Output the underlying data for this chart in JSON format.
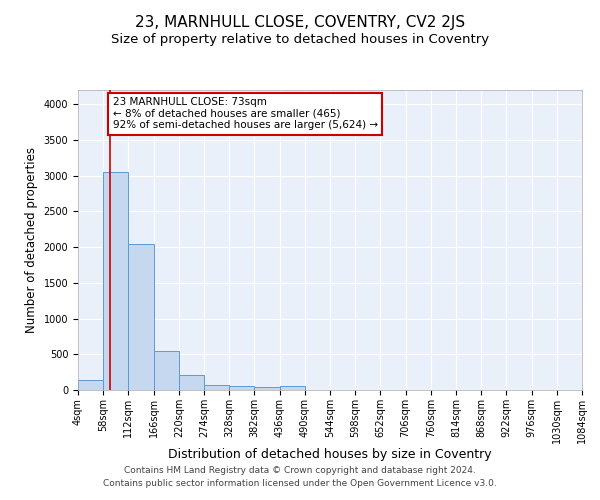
{
  "title1": "23, MARNHULL CLOSE, COVENTRY, CV2 2JS",
  "title2": "Size of property relative to detached houses in Coventry",
  "xlabel": "Distribution of detached houses by size in Coventry",
  "ylabel": "Number of detached properties",
  "bin_edges": [
    4,
    58,
    112,
    166,
    220,
    274,
    328,
    382,
    436,
    490,
    544,
    598,
    652,
    706,
    760,
    814,
    868,
    922,
    976,
    1030,
    1084
  ],
  "bar_heights": [
    140,
    3050,
    2050,
    540,
    215,
    70,
    50,
    45,
    50,
    0,
    0,
    0,
    0,
    0,
    0,
    0,
    0,
    0,
    0,
    0
  ],
  "bar_color": "#c5d8f0",
  "bar_edge_color": "#5b9bd5",
  "bg_color": "#eaf0fa",
  "grid_color": "#ffffff",
  "property_size": 73,
  "vline_color": "#cc0000",
  "annotation_text": "23 MARNHULL CLOSE: 73sqm\n← 8% of detached houses are smaller (465)\n92% of semi-detached houses are larger (5,624) →",
  "annotation_box_color": "#ffffff",
  "annotation_box_edge": "#cc0000",
  "ylim": [
    0,
    4200
  ],
  "yticks": [
    0,
    500,
    1000,
    1500,
    2000,
    2500,
    3000,
    3500,
    4000
  ],
  "footer_line1": "Contains HM Land Registry data © Crown copyright and database right 2024.",
  "footer_line2": "Contains public sector information licensed under the Open Government Licence v3.0.",
  "title1_fontsize": 11,
  "title2_fontsize": 9.5,
  "xlabel_fontsize": 9,
  "ylabel_fontsize": 8.5,
  "tick_fontsize": 7,
  "annotation_fontsize": 7.5,
  "footer_fontsize": 6.5
}
